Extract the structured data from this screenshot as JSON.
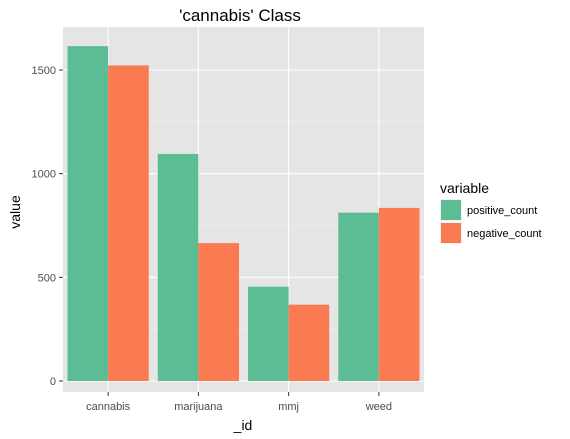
{
  "chart_data": {
    "type": "bar",
    "title": "'cannabis' Class",
    "xlabel": "_id",
    "ylabel": "value",
    "categories": [
      "cannabis",
      "marijuana",
      "mmj",
      "weed"
    ],
    "series": [
      {
        "name": "positive_count",
        "color": "#5cbd94",
        "values": [
          1615,
          1095,
          455,
          812
        ]
      },
      {
        "name": "negative_count",
        "color": "#fa7a51",
        "values": [
          1522,
          665,
          368,
          835
        ]
      }
    ],
    "ylim": [
      0,
      1700
    ],
    "yticks": [
      0,
      500,
      1000,
      1500
    ],
    "ytick_labels": [
      "0",
      "500",
      "1000",
      "1500"
    ],
    "grid": true,
    "legend_title": "variable",
    "legend_position": "right"
  }
}
